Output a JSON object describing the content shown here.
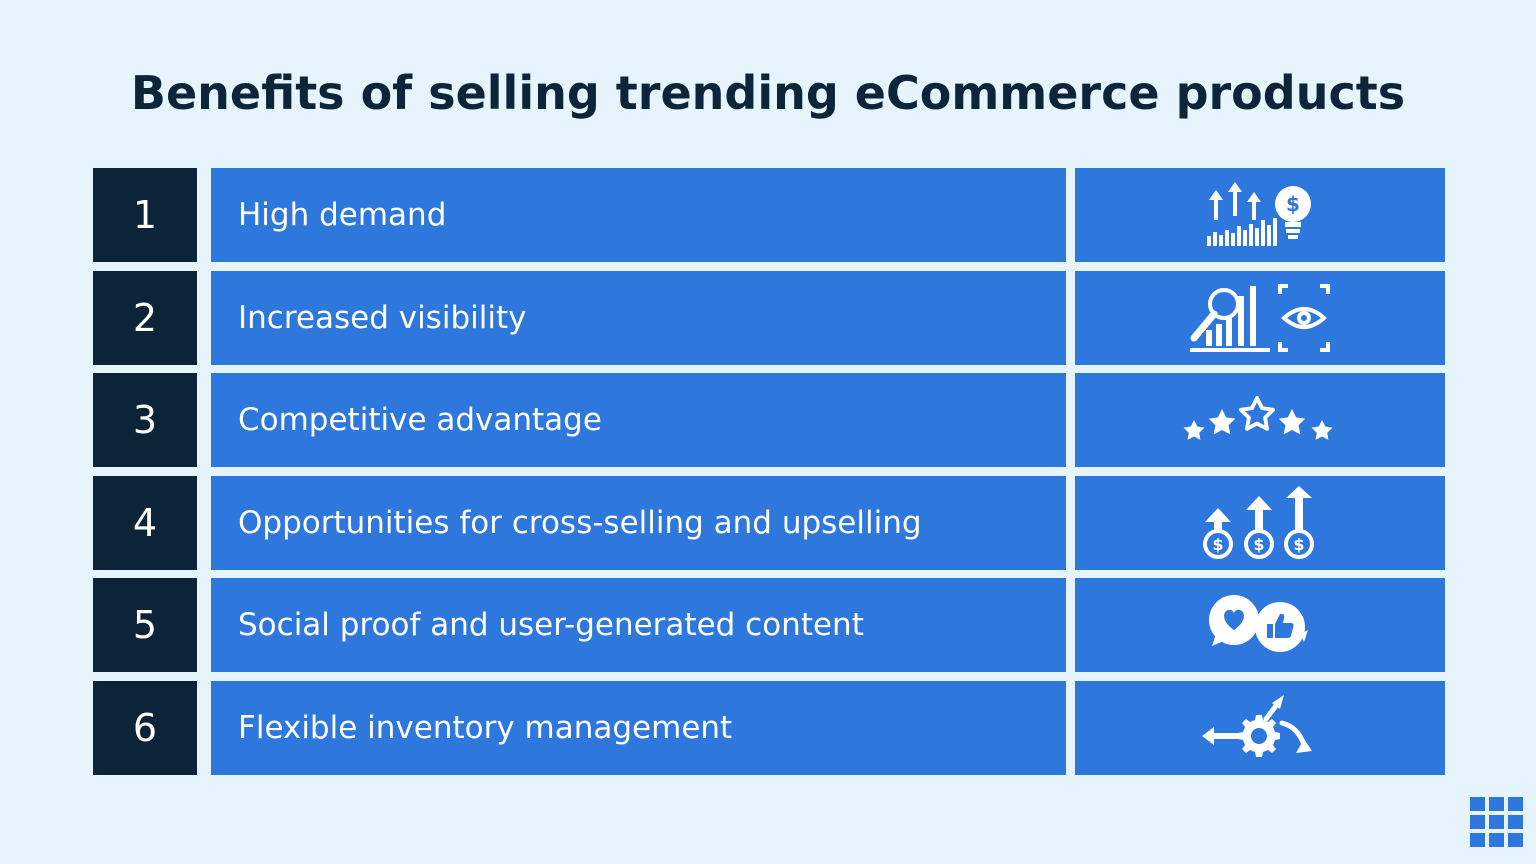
{
  "title": "Benefits of selling trending eCommerce products",
  "rows": [
    {
      "number": "1",
      "label": "High demand",
      "icon": "demand-growth-icon"
    },
    {
      "number": "2",
      "label": "Increased visibility",
      "icon": "visibility-icon"
    },
    {
      "number": "3",
      "label": "Competitive advantage",
      "icon": "stars-rating-icon"
    },
    {
      "number": "4",
      "label": "Opportunities for cross-selling and upselling",
      "icon": "money-growth-icon"
    },
    {
      "number": "5",
      "label": "Social proof and user-generated content",
      "icon": "social-reactions-icon"
    },
    {
      "number": "6",
      "label": "Flexible inventory management",
      "icon": "gear-arrows-icon"
    }
  ],
  "colors": {
    "background": "#e6f5fd",
    "title": "#0e2439",
    "number_cell": "#0d2338",
    "row_cell": "#2e77dc",
    "logo": "#2e77dc"
  },
  "logo_icon": "grid-logo-icon"
}
